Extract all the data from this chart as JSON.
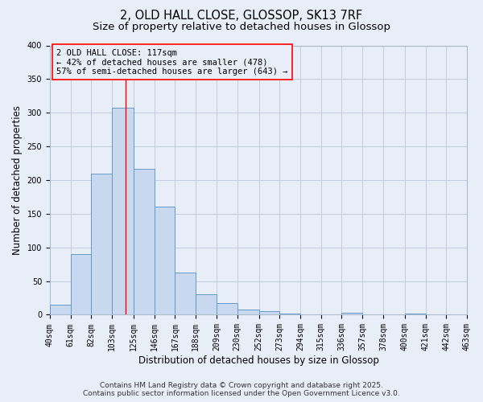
{
  "title_line1": "2, OLD HALL CLOSE, GLOSSOP, SK13 7RF",
  "title_line2": "Size of property relative to detached houses in Glossop",
  "bar_edges": [
    40,
    61,
    82,
    103,
    125,
    146,
    167,
    188,
    209,
    230,
    252,
    273,
    294,
    315,
    336,
    357,
    378,
    400,
    421,
    442,
    463
  ],
  "bar_heights": [
    15,
    90,
    210,
    307,
    217,
    160,
    63,
    30,
    17,
    8,
    5,
    2,
    1,
    0,
    3,
    1,
    0,
    2,
    0,
    0,
    2
  ],
  "bar_facecolor": "#c8d8ee",
  "bar_edgecolor": "#6699cc",
  "grid_color": "#c0cce0",
  "background_color": "#e8eef8",
  "ylabel": "Number of detached properties",
  "xlabel": "Distribution of detached houses by size in Glossop",
  "red_line_x": 117,
  "annotation_text": "2 OLD HALL CLOSE: 117sqm\n← 42% of detached houses are smaller (478)\n57% of semi-detached houses are larger (643) →",
  "ylim": [
    0,
    400
  ],
  "xlim": [
    40,
    463
  ],
  "tick_labels": [
    "40sqm",
    "61sqm",
    "82sqm",
    "103sqm",
    "125sqm",
    "146sqm",
    "167sqm",
    "188sqm",
    "209sqm",
    "230sqm",
    "252sqm",
    "273sqm",
    "294sqm",
    "315sqm",
    "336sqm",
    "357sqm",
    "378sqm",
    "400sqm",
    "421sqm",
    "442sqm",
    "463sqm"
  ],
  "footer_line1": "Contains HM Land Registry data © Crown copyright and database right 2025.",
  "footer_line2": "Contains public sector information licensed under the Open Government Licence v3.0.",
  "title_fontsize": 10.5,
  "subtitle_fontsize": 9.5,
  "axis_label_fontsize": 8.5,
  "tick_fontsize": 7,
  "annotation_fontsize": 7.5,
  "footer_fontsize": 6.5,
  "ytick_values": [
    0,
    50,
    100,
    150,
    200,
    250,
    300,
    350,
    400
  ]
}
